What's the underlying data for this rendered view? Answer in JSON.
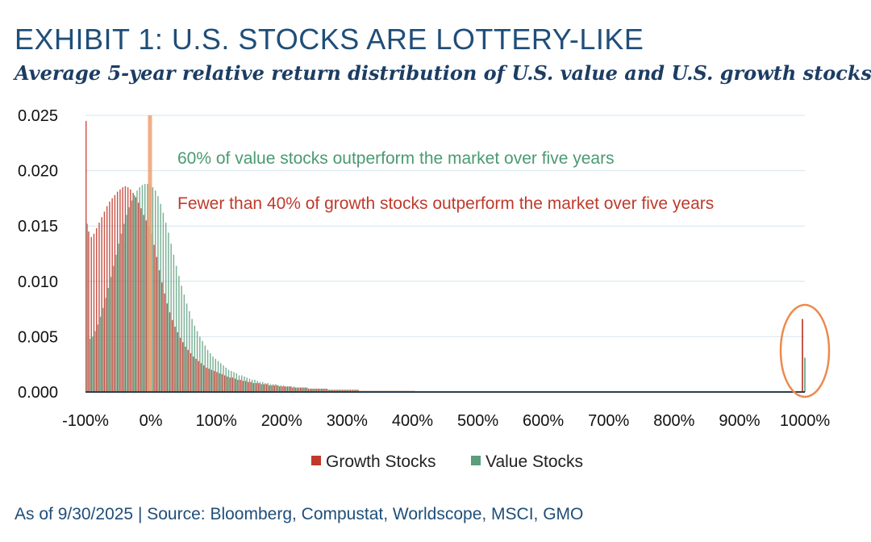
{
  "exhibit": {
    "title": "EXHIBIT 1: U.S. STOCKS ARE LOTTERY-LIKE",
    "footer": "As of 9/30/2025 | Source: Bloomberg, Compustat, Worldscope, MSCI, GMO"
  },
  "chart_data": {
    "type": "bar",
    "title": "Average 5-year relative return distribution of U.S. value and U.S. growth stocks",
    "xlabel": "",
    "ylabel": "",
    "xlim": [
      -100,
      1000
    ],
    "ylim": [
      0,
      0.025
    ],
    "x_ticks": [
      "-100%",
      "0%",
      "100%",
      "200%",
      "300%",
      "400%",
      "500%",
      "600%",
      "700%",
      "800%",
      "900%",
      "1000%"
    ],
    "y_ticks": [
      "0.025",
      "0.020",
      "0.015",
      "0.010",
      "0.005",
      "0.000"
    ],
    "bin_width_pct": 4,
    "series": [
      {
        "name": "Growth Stocks",
        "color": "#c0392b",
        "x": [
          -100,
          -96,
          -92,
          -88,
          -84,
          -80,
          -76,
          -72,
          -68,
          -64,
          -60,
          -56,
          -52,
          -48,
          -44,
          -40,
          -36,
          -32,
          -28,
          -24,
          -20,
          -16,
          -12,
          -8,
          -4,
          0,
          4,
          8,
          12,
          16,
          20,
          24,
          28,
          32,
          36,
          40,
          44,
          48,
          52,
          56,
          60,
          64,
          68,
          72,
          76,
          80,
          84,
          88,
          92,
          96,
          100,
          104,
          108,
          112,
          116,
          120,
          124,
          128,
          132,
          136,
          140,
          144,
          148,
          152,
          156,
          160,
          164,
          168,
          172,
          176,
          180,
          184,
          188,
          192,
          196,
          200,
          204,
          208,
          212,
          216,
          220,
          224,
          228,
          232,
          236,
          240,
          244,
          248,
          252,
          256,
          260,
          264,
          268,
          272,
          276,
          280,
          284,
          288,
          292,
          296,
          300,
          304,
          308,
          312,
          316,
          320,
          324,
          328,
          332,
          336,
          340,
          344,
          348,
          352,
          356,
          360,
          364,
          368,
          372,
          376,
          380,
          384,
          388,
          392,
          396,
          400,
          1000
        ],
        "values": [
          0.0245,
          0.0145,
          0.014,
          0.0143,
          0.0148,
          0.0153,
          0.0158,
          0.0163,
          0.0168,
          0.0172,
          0.0175,
          0.0178,
          0.0181,
          0.0183,
          0.0185,
          0.0186,
          0.0185,
          0.0183,
          0.018,
          0.0176,
          0.0171,
          0.0166,
          0.016,
          0.0155,
          0.015,
          0.0143,
          0.0133,
          0.0122,
          0.011,
          0.0099,
          0.0089,
          0.008,
          0.0072,
          0.0065,
          0.0059,
          0.0054,
          0.0049,
          0.0045,
          0.0041,
          0.0038,
          0.0035,
          0.0032,
          0.003,
          0.0028,
          0.0026,
          0.0024,
          0.0022,
          0.0021,
          0.002,
          0.0019,
          0.0018,
          0.0017,
          0.0016,
          0.0015,
          0.0014,
          0.0013,
          0.0013,
          0.0012,
          0.0011,
          0.0011,
          0.001,
          0.001,
          0.0009,
          0.0009,
          0.0008,
          0.0008,
          0.0008,
          0.0007,
          0.0007,
          0.0007,
          0.0006,
          0.0006,
          0.0006,
          0.0006,
          0.0005,
          0.0005,
          0.0005,
          0.0005,
          0.0005,
          0.0004,
          0.0004,
          0.0004,
          0.0004,
          0.0004,
          0.0004,
          0.0003,
          0.0003,
          0.0003,
          0.0003,
          0.0003,
          0.0003,
          0.0003,
          0.0003,
          0.0002,
          0.0002,
          0.0002,
          0.0002,
          0.0002,
          0.0002,
          0.0002,
          0.0002,
          0.0002,
          0.0002,
          0.0002,
          0.0002,
          0.0001,
          0.0001,
          0.0001,
          0.0001,
          0.0001,
          0.0001,
          0.0001,
          0.0001,
          0.0001,
          0.0001,
          0.0001,
          0.0001,
          0.0001,
          0.0001,
          0.0001,
          0.0001,
          0.0001,
          0.0001,
          0.0001,
          0.0001,
          0.0001,
          0.0066
        ]
      },
      {
        "name": "Value Stocks",
        "color": "#5a9e7c",
        "x": [
          -100,
          -96,
          -92,
          -88,
          -84,
          -80,
          -76,
          -72,
          -68,
          -64,
          -60,
          -56,
          -52,
          -48,
          -44,
          -40,
          -36,
          -32,
          -28,
          -24,
          -20,
          -16,
          -12,
          -8,
          -4,
          0,
          4,
          8,
          12,
          16,
          20,
          24,
          28,
          32,
          36,
          40,
          44,
          48,
          52,
          56,
          60,
          64,
          68,
          72,
          76,
          80,
          84,
          88,
          92,
          96,
          100,
          104,
          108,
          112,
          116,
          120,
          124,
          128,
          132,
          136,
          140,
          144,
          148,
          152,
          156,
          160,
          164,
          168,
          172,
          176,
          180,
          184,
          188,
          192,
          196,
          200,
          204,
          208,
          212,
          216,
          220,
          224,
          228,
          232,
          236,
          240,
          244,
          248,
          252,
          256,
          260,
          264,
          268,
          272,
          276,
          280,
          284,
          288,
          292,
          296,
          300,
          304,
          308,
          312,
          316,
          320,
          324,
          328,
          332,
          336,
          340,
          344,
          348,
          352,
          356,
          360,
          364,
          368,
          372,
          376,
          380,
          384,
          388,
          392,
          396,
          400,
          1000
        ],
        "values": [
          0.0152,
          0.0048,
          0.005,
          0.0055,
          0.0061,
          0.0068,
          0.0076,
          0.0085,
          0.0094,
          0.0104,
          0.0114,
          0.0124,
          0.0134,
          0.0143,
          0.0152,
          0.016,
          0.0167,
          0.0173,
          0.0178,
          0.0182,
          0.0185,
          0.0187,
          0.0188,
          0.0188,
          0.0187,
          0.0185,
          0.0182,
          0.0177,
          0.017,
          0.0162,
          0.0153,
          0.0144,
          0.0134,
          0.0124,
          0.0114,
          0.0105,
          0.0096,
          0.0088,
          0.008,
          0.0073,
          0.0066,
          0.006,
          0.0055,
          0.005,
          0.0046,
          0.0042,
          0.0038,
          0.0035,
          0.0032,
          0.003,
          0.0028,
          0.0026,
          0.0024,
          0.0022,
          0.002,
          0.0019,
          0.0018,
          0.0017,
          0.0015,
          0.0015,
          0.0014,
          0.0013,
          0.0012,
          0.0011,
          0.0011,
          0.001,
          0.0009,
          0.0009,
          0.0008,
          0.0008,
          0.0007,
          0.0007,
          0.0007,
          0.0006,
          0.0006,
          0.0006,
          0.0005,
          0.0005,
          0.0005,
          0.0005,
          0.0004,
          0.0004,
          0.0004,
          0.0004,
          0.0004,
          0.0003,
          0.0003,
          0.0003,
          0.0003,
          0.0003,
          0.0003,
          0.0003,
          0.0002,
          0.0002,
          0.0002,
          0.0002,
          0.0002,
          0.0002,
          0.0002,
          0.0002,
          0.0002,
          0.0002,
          0.0002,
          0.0002,
          0.0001,
          0.0001,
          0.0001,
          0.0001,
          0.0001,
          0.0001,
          0.0001,
          0.0001,
          0.0001,
          0.0001,
          0.0001,
          0.0001,
          0.0001,
          0.0001,
          0.0001,
          0.0001,
          0.0001,
          0.0001,
          0.0001,
          0.0001,
          0.0001,
          0.0001,
          0.0031
        ]
      }
    ],
    "reference_line": {
      "x": -2,
      "color": "#f0a57a"
    },
    "annotations": [
      {
        "text": "60% of value stocks outperform the market over five years",
        "color": "#4a9a72"
      },
      {
        "text": "Fewer than 40% of growth stocks outperform the market over five years",
        "color": "#c0392b"
      }
    ],
    "highlight_ellipse": {
      "x": 1000,
      "color": "#ec8a4e"
    },
    "legend": {
      "placement": "bottom-center",
      "entries": [
        "Growth Stocks",
        "Value Stocks"
      ]
    }
  }
}
